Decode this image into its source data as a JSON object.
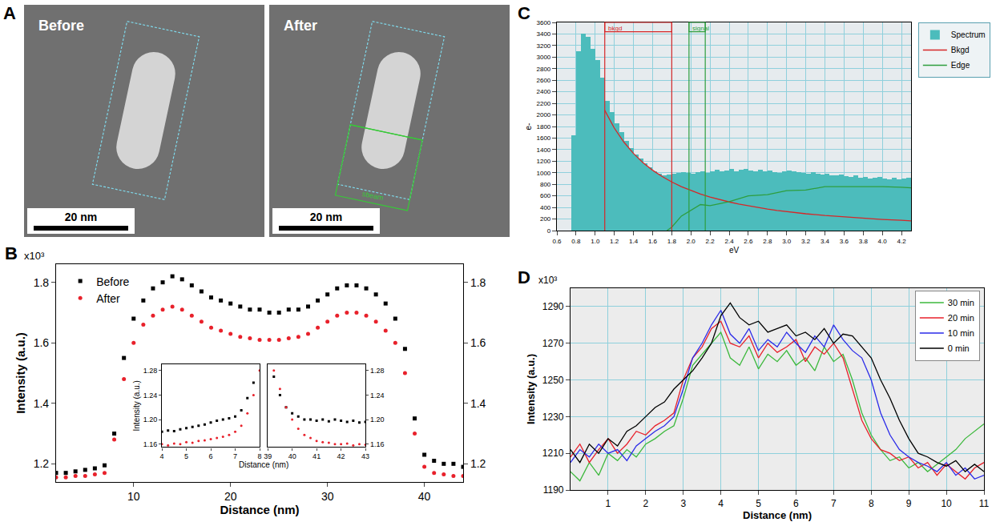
{
  "panel_A": {
    "letter": "A",
    "images": [
      {
        "label": "Before",
        "scale_bar": "20 nm"
      },
      {
        "label": "After",
        "scale_bar": "20 nm",
        "region_label": "sbeam"
      }
    ]
  },
  "chart_data": [
    {
      "type": "scatter",
      "title": "B",
      "x_label": "Distance (nm)",
      "y_label": "Intensity (a.u.)",
      "annotations": [
        "x10³"
      ],
      "x": [
        2,
        3,
        4,
        5,
        6,
        7,
        8,
        9,
        10,
        11,
        12,
        13,
        14,
        15,
        16,
        17,
        18,
        19,
        20,
        21,
        22,
        23,
        24,
        25,
        26,
        27,
        28,
        29,
        30,
        31,
        32,
        33,
        34,
        35,
        36,
        37,
        38,
        39,
        40,
        41,
        42,
        43,
        44
      ],
      "series": [
        {
          "name": "Before",
          "color": "#000000",
          "marker": "square",
          "values": [
            1.17,
            1.17,
            1.175,
            1.18,
            1.185,
            1.195,
            1.3,
            1.55,
            1.68,
            1.74,
            1.78,
            1.8,
            1.82,
            1.81,
            1.79,
            1.77,
            1.75,
            1.74,
            1.73,
            1.72,
            1.71,
            1.71,
            1.7,
            1.7,
            1.71,
            1.71,
            1.72,
            1.74,
            1.76,
            1.78,
            1.79,
            1.79,
            1.78,
            1.76,
            1.73,
            1.68,
            1.58,
            1.35,
            1.23,
            1.21,
            1.2,
            1.2,
            1.19
          ]
        },
        {
          "name": "After",
          "color": "#e8212b",
          "marker": "circle",
          "values": [
            1.155,
            1.155,
            1.16,
            1.16,
            1.165,
            1.17,
            1.28,
            1.48,
            1.6,
            1.66,
            1.69,
            1.71,
            1.72,
            1.71,
            1.69,
            1.67,
            1.65,
            1.64,
            1.63,
            1.62,
            1.615,
            1.61,
            1.61,
            1.61,
            1.615,
            1.62,
            1.63,
            1.65,
            1.67,
            1.69,
            1.7,
            1.7,
            1.69,
            1.67,
            1.64,
            1.6,
            1.5,
            1.3,
            1.19,
            1.17,
            1.165,
            1.16,
            1.16
          ]
        }
      ],
      "xlim": [
        2,
        44
      ],
      "xticks": [
        10,
        20,
        30,
        40
      ],
      "ylim": [
        1.14,
        1.86
      ],
      "yticks": [
        1.2,
        1.4,
        1.6,
        1.8
      ],
      "y2lim": [
        1.14,
        1.86
      ],
      "y2ticks": [
        1.2,
        1.4,
        1.6,
        1.8
      ],
      "legend": "upper left",
      "grid": false,
      "inset": {
        "type": "scatter",
        "x_label": "Distance (nm)",
        "y_label": "Intensity (a.u.)",
        "ylim": [
          1.155,
          1.29
        ],
        "yticks": [
          1.16,
          {
            "value": 1.2,
            "label": "1.20"
          },
          1.24,
          1.28
        ],
        "y2lim": [
          1.155,
          1.29
        ],
        "y2ticks": [
          1.16,
          {
            "value": 1.2,
            "label": "1.20"
          },
          1.24,
          1.28
        ],
        "panels": [
          {
            "x": [
              4,
              4.25,
              4.5,
              4.75,
              5,
              5.25,
              5.5,
              5.75,
              6,
              6.25,
              6.5,
              6.75,
              7,
              7.25,
              7.5,
              7.75,
              8
            ],
            "xlim": [
              4,
              8
            ],
            "xticks": [
              4,
              5,
              6,
              7,
              8
            ],
            "series": [
              {
                "name": "Before",
                "color": "#000000",
                "marker": "square",
                "values": [
                  1.18,
                  1.182,
                  1.181,
                  1.184,
                  1.186,
                  1.188,
                  1.19,
                  1.192,
                  1.195,
                  1.198,
                  1.2,
                  1.202,
                  1.205,
                  1.215,
                  1.235,
                  1.26,
                  1.3
                ]
              },
              {
                "name": "After",
                "color": "#e8212b",
                "marker": "circle",
                "values": [
                  1.16,
                  1.158,
                  1.161,
                  1.16,
                  1.163,
                  1.162,
                  1.165,
                  1.166,
                  1.168,
                  1.17,
                  1.172,
                  1.175,
                  1.18,
                  1.19,
                  1.21,
                  1.24,
                  1.28
                ]
              }
            ]
          },
          {
            "x": [
              39,
              39.25,
              39.5,
              39.75,
              40,
              40.25,
              40.5,
              40.75,
              41,
              41.25,
              41.5,
              41.75,
              42,
              42.25,
              42.5,
              42.75,
              43
            ],
            "xlim": [
              39,
              43
            ],
            "xticks": [
              39,
              40,
              41,
              42,
              43
            ],
            "series": [
              {
                "name": "Before",
                "color": "#000000",
                "marker": "square",
                "values": [
                  1.3,
                  1.27,
                  1.24,
                  1.22,
                  1.21,
                  1.205,
                  1.2,
                  1.2,
                  1.198,
                  1.2,
                  1.197,
                  1.2,
                  1.198,
                  1.196,
                  1.198,
                  1.195,
                  1.196
                ]
              },
              {
                "name": "After",
                "color": "#e8212b",
                "marker": "circle",
                "values": [
                  1.3,
                  1.28,
                  1.25,
                  1.22,
                  1.2,
                  1.185,
                  1.175,
                  1.17,
                  1.165,
                  1.163,
                  1.162,
                  1.16,
                  1.16,
                  1.161,
                  1.158,
                  1.16,
                  1.159
                ]
              }
            ]
          }
        ]
      }
    },
    {
      "type": "line",
      "title": "C",
      "x_label": "eV",
      "y_label": "e-",
      "series": [
        {
          "name": "Spectrum",
          "type": "histogram",
          "color": "#4cbcbc",
          "bins": [
            0.75,
            0.8,
            0.85,
            0.9,
            0.95,
            1,
            1.05,
            1.1,
            1.15,
            1.2,
            1.25,
            1.3,
            1.35,
            1.4,
            1.45,
            1.5,
            1.55,
            1.6,
            1.65,
            1.7,
            1.75,
            1.8,
            1.85,
            1.9,
            1.95,
            2,
            2.05,
            2.1,
            2.15,
            2.2,
            2.25,
            2.3,
            2.35,
            2.4,
            2.45,
            2.5,
            2.55,
            2.6,
            2.65,
            2.7,
            2.75,
            2.8,
            2.85,
            2.9,
            2.95,
            3,
            3.05,
            3.1,
            3.15,
            3.2,
            3.25,
            3.3,
            3.35,
            3.4,
            3.45,
            3.5,
            3.55,
            3.6,
            3.65,
            3.7,
            3.75,
            3.8,
            3.85,
            3.9,
            3.95,
            4,
            4.05,
            4.1,
            4.15,
            4.2,
            4.25,
            4.3
          ],
          "values": [
            1650,
            3100,
            3400,
            3350,
            3150,
            2950,
            2650,
            2250,
            2050,
            1850,
            1700,
            1550,
            1430,
            1320,
            1240,
            1160,
            1100,
            1020,
            980,
            960,
            970,
            990,
            1000,
            1010,
            1000,
            990,
            1010,
            1020,
            1000,
            1030,
            1050,
            1020,
            1040,
            1060,
            1030,
            1050,
            1070,
            1040,
            1030,
            1050,
            1020,
            1040,
            1010,
            1000,
            1020,
            1040,
            1030,
            1010,
            1000,
            990,
            1010,
            980,
            970,
            990,
            960,
            950,
            970,
            940,
            930,
            950,
            920,
            930,
            900,
            910,
            930,
            900,
            890,
            920,
            880,
            900,
            910
          ]
        },
        {
          "name": "Bkgd",
          "type": "line",
          "color": "#d62728",
          "x": [
            1.1,
            1.2,
            1.3,
            1.4,
            1.5,
            1.6,
            1.7,
            1.8,
            1.9,
            2.0,
            2.1,
            2.2,
            2.3,
            2.4,
            2.5,
            2.6,
            2.7,
            2.8,
            2.9,
            3.0,
            3.2,
            3.4,
            3.6,
            3.8,
            4.0,
            4.2,
            4.3
          ],
          "values": [
            2080,
            1772,
            1530,
            1334,
            1175,
            1044,
            934,
            841,
            761,
            693,
            633,
            581,
            535,
            495,
            459,
            427,
            399,
            373,
            349,
            328,
            291,
            261,
            235,
            213,
            193,
            177,
            169
          ]
        },
        {
          "name": "Edge",
          "type": "line",
          "color": "#2e9e3e",
          "x": [
            1.75,
            1.8,
            1.9,
            2.0,
            2.1,
            2.2,
            2.4,
            2.6,
            2.8,
            3.0,
            3.2,
            3.4,
            3.6,
            3.8,
            4.0,
            4.2,
            4.3
          ],
          "values": [
            0,
            60,
            250,
            350,
            450,
            430,
            500,
            600,
            620,
            690,
            700,
            760,
            760,
            770,
            760,
            750,
            740
          ]
        }
      ],
      "regions": [
        {
          "label": "bkgd",
          "x": [
            1.1,
            1.8
          ],
          "color": "#d62728"
        },
        {
          "label": "signal",
          "x": [
            1.98,
            2.15
          ],
          "color": "#2e9e3e"
        }
      ],
      "xlim": [
        0.6,
        4.3
      ],
      "xticks": [
        0.6,
        0.8,
        {
          "value": 1,
          "label": "1.0"
        },
        1.2,
        1.4,
        1.6,
        1.8,
        {
          "value": 2,
          "label": "2.0"
        },
        2.2,
        2.4,
        2.6,
        2.8,
        {
          "value": 3,
          "label": "3.0"
        },
        3.2,
        3.4,
        3.6,
        3.8,
        {
          "value": 4,
          "label": "4.0"
        },
        4.2
      ],
      "ylim": [
        0,
        3600
      ],
      "yticks": [
        0,
        200,
        400,
        600,
        800,
        1000,
        1200,
        1400,
        1600,
        1800,
        2000,
        2200,
        2400,
        2600,
        2800,
        3000,
        3200,
        3400,
        3600
      ],
      "legend": "right",
      "grid": true
    },
    {
      "type": "line",
      "title": "D",
      "x_label": "Distance (nm)",
      "y_label": "Intensity (a.u.)",
      "annotations": [
        "x10³"
      ],
      "x": [
        0,
        0.25,
        0.5,
        0.75,
        1,
        1.25,
        1.5,
        1.75,
        2,
        2.25,
        2.5,
        2.75,
        3,
        3.25,
        3.5,
        3.75,
        4,
        4.25,
        4.5,
        4.75,
        5,
        5.25,
        5.5,
        5.75,
        6,
        6.25,
        6.5,
        6.75,
        7,
        7.25,
        7.5,
        7.75,
        8,
        8.25,
        8.5,
        8.75,
        9,
        9.25,
        9.5,
        9.75,
        10,
        10.25,
        10.5,
        10.75,
        11
      ],
      "series": [
        {
          "name": "30 min",
          "color": "#3cb83c",
          "values": [
            1200,
            1195,
            1205,
            1198,
            1210,
            1206,
            1212,
            1208,
            1215,
            1218,
            1222,
            1225,
            1240,
            1258,
            1264,
            1270,
            1276,
            1262,
            1258,
            1268,
            1256,
            1264,
            1260,
            1266,
            1258,
            1262,
            1255,
            1268,
            1260,
            1264,
            1250,
            1232,
            1220,
            1212,
            1206,
            1208,
            1202,
            1205,
            1200,
            1204,
            1208,
            1212,
            1218,
            1222,
            1226
          ]
        },
        {
          "name": "20 min",
          "color": "#e8212b",
          "values": [
            1208,
            1215,
            1205,
            1212,
            1218,
            1210,
            1215,
            1222,
            1220,
            1225,
            1228,
            1232,
            1250,
            1262,
            1268,
            1278,
            1282,
            1270,
            1268,
            1274,
            1262,
            1270,
            1265,
            1268,
            1272,
            1260,
            1268,
            1264,
            1270,
            1262,
            1245,
            1228,
            1218,
            1212,
            1210,
            1206,
            1208,
            1202,
            1205,
            1198,
            1204,
            1200,
            1196,
            1202,
            1205
          ]
        },
        {
          "name": "10 min",
          "color": "#2a2ae8",
          "values": [
            1205,
            1212,
            1208,
            1215,
            1210,
            1212,
            1206,
            1214,
            1218,
            1222,
            1225,
            1230,
            1245,
            1262,
            1270,
            1280,
            1288,
            1275,
            1270,
            1278,
            1266,
            1272,
            1268,
            1276,
            1270,
            1265,
            1274,
            1268,
            1280,
            1272,
            1266,
            1262,
            1250,
            1232,
            1220,
            1212,
            1208,
            1205,
            1203,
            1200,
            1205,
            1198,
            1202,
            1196,
            1198
          ]
        },
        {
          "name": "0 min",
          "color": "#000000",
          "values": [
            1212,
            1205,
            1215,
            1210,
            1218,
            1214,
            1222,
            1225,
            1230,
            1235,
            1238,
            1245,
            1250,
            1255,
            1262,
            1270,
            1285,
            1292,
            1284,
            1280,
            1282,
            1276,
            1278,
            1280,
            1274,
            1276,
            1272,
            1278,
            1270,
            1275,
            1274,
            1268,
            1262,
            1250,
            1240,
            1228,
            1218,
            1210,
            1208,
            1205,
            1203,
            1206,
            1200,
            1204,
            1200
          ]
        }
      ],
      "xlim": [
        0,
        11
      ],
      "xticks": [
        1,
        2,
        3,
        4,
        5,
        6,
        7,
        8,
        9,
        10,
        11
      ],
      "ylim": [
        1190,
        1300
      ],
      "yticks": [
        1190,
        1210,
        1230,
        1250,
        1270,
        1290
      ],
      "legend": "upper right",
      "grid": true
    }
  ]
}
